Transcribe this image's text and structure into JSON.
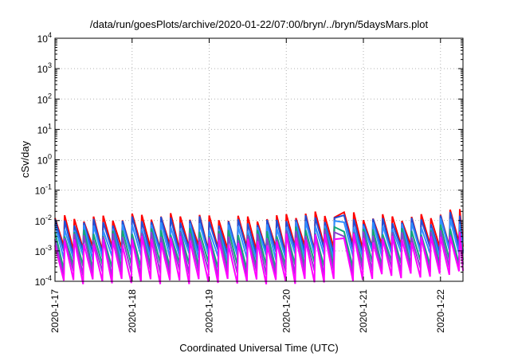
{
  "chart_data": {
    "type": "line",
    "title": "/data/run/goesPlots/archive/2020-01-22/07:00/bryn/../bryn/5daysMars.plot",
    "xlabel": "Coordinated Universal Time (UTC)",
    "ylabel": "cSv/day",
    "yscale": "log",
    "ylim": [
      0.0001,
      10000
    ],
    "xlim": [
      "2020-01-17",
      "2020-01-22 07:00"
    ],
    "grid": true,
    "xticks": [
      "2020-1-17",
      "2020-1-18",
      "2020-1-19",
      "2020-1-20",
      "2020-1-21",
      "2020-1-22"
    ],
    "yticks": [
      {
        "base": "10",
        "exp": "-4"
      },
      {
        "base": "10",
        "exp": "-3"
      },
      {
        "base": "10",
        "exp": "-2"
      },
      {
        "base": "10",
        "exp": "-1"
      },
      {
        "base": "10",
        "exp": "0"
      },
      {
        "base": "10",
        "exp": "1"
      },
      {
        "base": "10",
        "exp": "2"
      },
      {
        "base": "10",
        "exp": "3"
      },
      {
        "base": "10",
        "exp": "4"
      }
    ],
    "sawtooth_period_hours": 3,
    "gap": [
      "2020-01-20 17:00",
      "2020-01-20 18:00"
    ],
    "series": [
      {
        "color": "#ff0000",
        "peaks": [
          0.012,
          0.014,
          0.012,
          0.016,
          0.013,
          0.02
        ],
        "troughs": [
          0.0012,
          0.0013,
          0.0011,
          0.0013,
          0.0014,
          0.0016
        ]
      },
      {
        "color": "#1f4fd6",
        "peaks": [
          0.009,
          0.011,
          0.009,
          0.012,
          0.01,
          0.015
        ],
        "troughs": [
          0.0009,
          0.001,
          0.0009,
          0.001,
          0.0011,
          0.0012
        ]
      },
      {
        "color": "#2e8fff",
        "peaks": [
          0.006,
          0.007,
          0.006,
          0.008,
          0.007,
          0.01
        ],
        "troughs": [
          0.0006,
          0.0007,
          0.0006,
          0.0007,
          0.0008,
          0.0009
        ]
      },
      {
        "color": "#12a878",
        "peaks": [
          0.004,
          0.0045,
          0.004,
          0.005,
          0.0045,
          0.006
        ],
        "troughs": [
          0.0003,
          0.00035,
          0.0003,
          0.00035,
          0.0004,
          0.00045
        ]
      },
      {
        "color": "#8a3fd0",
        "peaks": [
          0.003,
          0.0035,
          0.003,
          0.004,
          0.0035,
          0.0045
        ],
        "troughs": [
          0.00018,
          0.0002,
          0.00018,
          0.0002,
          0.00025,
          0.0003
        ]
      },
      {
        "color": "#ff00ff",
        "peaks": [
          0.002,
          0.0025,
          0.002,
          0.003,
          0.0025,
          0.0035
        ],
        "troughs": [
          0.0001,
          0.0001,
          0.0001,
          0.0001,
          0.00015,
          0.0002
        ]
      }
    ]
  }
}
